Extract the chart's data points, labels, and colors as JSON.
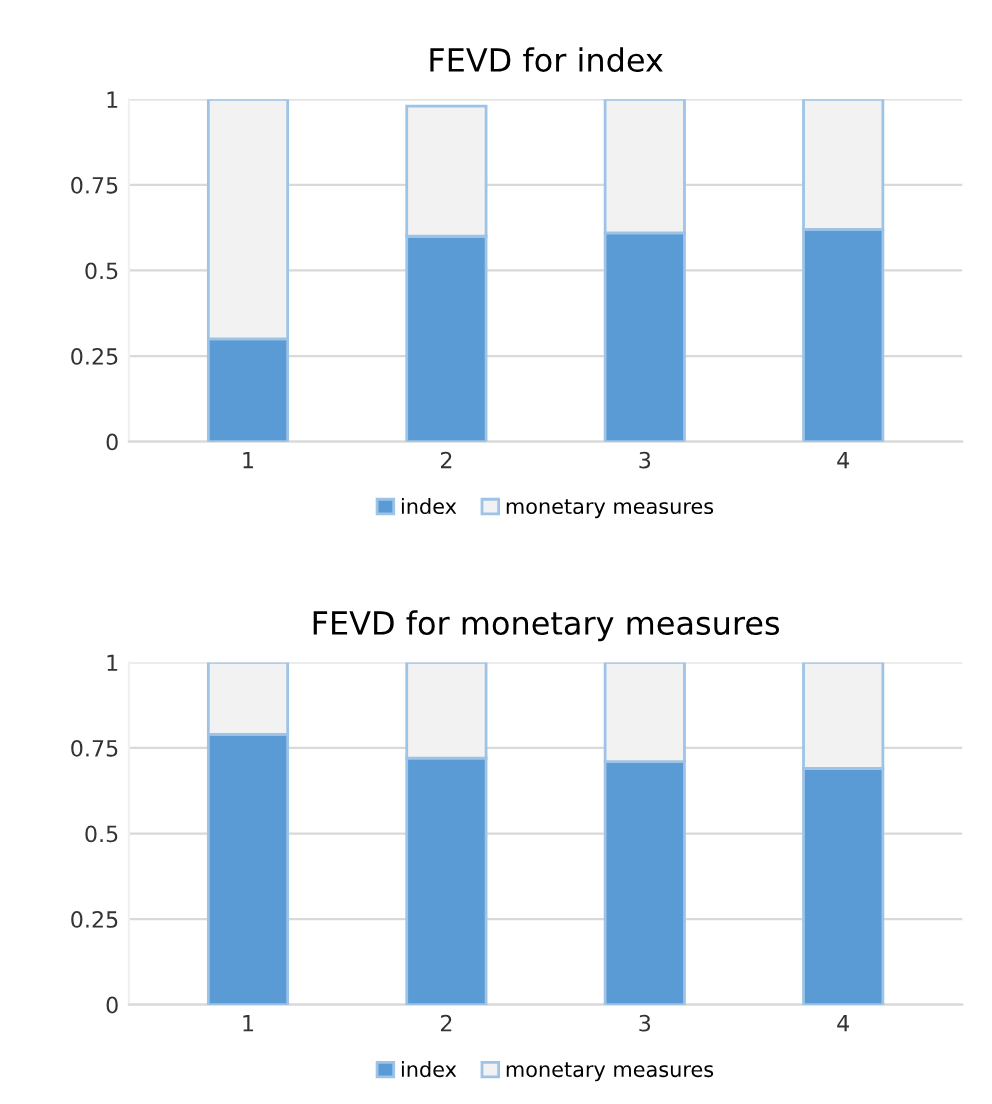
{
  "chart_data": [
    {
      "type": "bar",
      "title": "FEVD for index",
      "categories": [
        "1",
        "2",
        "3",
        "4"
      ],
      "stacked": true,
      "series": [
        {
          "name": "index",
          "color": "#5b9bd5",
          "values": [
            0.3,
            0.6,
            0.61,
            0.62
          ]
        },
        {
          "name": "monetary measures",
          "color": "#f2f2f2",
          "values": [
            0.7,
            0.38,
            0.39,
            0.38
          ]
        }
      ],
      "ylim": [
        0,
        1
      ],
      "yticks": [
        0,
        0.25,
        0.5,
        0.75,
        1
      ],
      "grid": "y",
      "legend": "bottom"
    },
    {
      "type": "bar",
      "title": "FEVD for monetary measures",
      "categories": [
        "1",
        "2",
        "3",
        "4"
      ],
      "stacked": true,
      "series": [
        {
          "name": "index",
          "color": "#5b9bd5",
          "values": [
            0.79,
            0.72,
            0.71,
            0.69
          ]
        },
        {
          "name": "monetary measures",
          "color": "#f2f2f2",
          "values": [
            0.21,
            0.28,
            0.29,
            0.31
          ]
        }
      ],
      "ylim": [
        0,
        1
      ],
      "yticks": [
        0,
        0.25,
        0.5,
        0.75,
        1
      ],
      "grid": "y",
      "legend": "bottom"
    }
  ]
}
